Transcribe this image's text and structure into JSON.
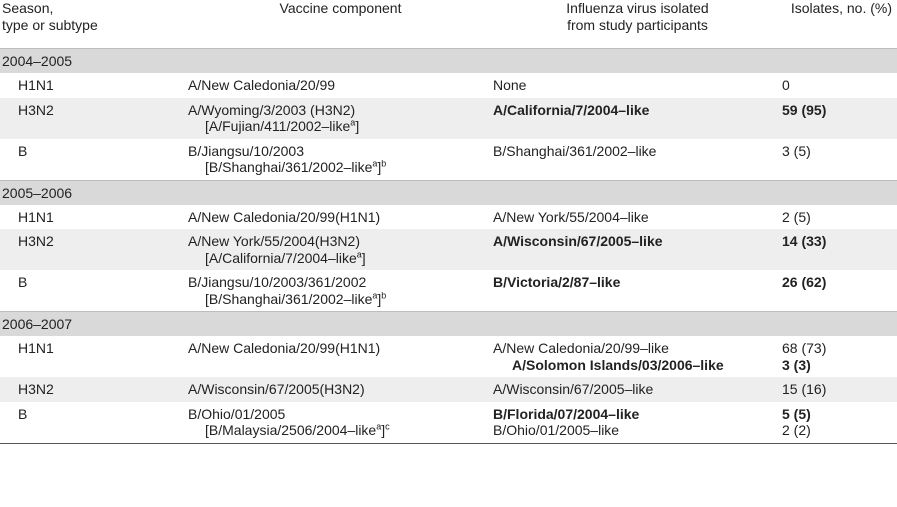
{
  "header": {
    "col_season": "Season,\ntype or subtype",
    "col_vaccine": "Vaccine component",
    "col_isolated": "Influenza virus isolated\nfrom study participants",
    "col_isolates": "Isolates, no. (%)"
  },
  "seasons": [
    {
      "label": "2004–2005",
      "rows": [
        {
          "type": "H1N1",
          "vaccine": "A/New Caledonia/20/99",
          "vaccine_sub": "",
          "vaccine_sub_sup": "",
          "vaccine_sub_tail": "",
          "isolated": [
            {
              "text": "None",
              "bold": false
            }
          ],
          "isolates": [
            {
              "text": "0",
              "bold": false
            }
          ],
          "shaded": false
        },
        {
          "type": "H3N2",
          "vaccine": "A/Wyoming/3/2003 (H3N2)",
          "vaccine_sub": "[A/Fujian/411/2002–like",
          "vaccine_sub_sup": "a",
          "vaccine_sub_tail": "]",
          "isolated": [
            {
              "text": "A/California/7/2004–like",
              "bold": true
            }
          ],
          "isolates": [
            {
              "text": "59 (95)",
              "bold": true
            }
          ],
          "shaded": true
        },
        {
          "type": "B",
          "vaccine": "B/Jiangsu/10/2003",
          "vaccine_sub": "[B/Shanghai/361/2002–like",
          "vaccine_sub_sup": "a",
          "vaccine_sub_tail": "]b",
          "isolated": [
            {
              "text": "B/Shanghai/361/2002–like",
              "bold": false
            }
          ],
          "isolates": [
            {
              "text": "3 (5)",
              "bold": false
            }
          ],
          "shaded": false
        }
      ]
    },
    {
      "label": "2005–2006",
      "rows": [
        {
          "type": "H1N1",
          "vaccine": "A/New Caledonia/20/99(H1N1)",
          "vaccine_sub": "",
          "vaccine_sub_sup": "",
          "vaccine_sub_tail": "",
          "isolated": [
            {
              "text": "A/New York/55/2004–like",
              "bold": false
            }
          ],
          "isolates": [
            {
              "text": "2 (5)",
              "bold": false
            }
          ],
          "shaded": false
        },
        {
          "type": "H3N2",
          "vaccine": "A/New York/55/2004(H3N2)",
          "vaccine_sub": "[A/California/7/2004–like",
          "vaccine_sub_sup": "a",
          "vaccine_sub_tail": "]",
          "isolated": [
            {
              "text": "A/Wisconsin/67/2005–like",
              "bold": true
            }
          ],
          "isolates": [
            {
              "text": "14 (33)",
              "bold": true
            }
          ],
          "shaded": true
        },
        {
          "type": "B",
          "vaccine": "B/Jiangsu/10/2003/361/2002",
          "vaccine_sub": "[B/Shanghai/361/2002–like",
          "vaccine_sub_sup": "a",
          "vaccine_sub_tail": "]b",
          "isolated": [
            {
              "text": "B/Victoria/2/87–like",
              "bold": true
            }
          ],
          "isolates": [
            {
              "text": "26 (62)",
              "bold": true
            }
          ],
          "shaded": false
        }
      ]
    },
    {
      "label": "2006–2007",
      "rows": [
        {
          "type": "H1N1",
          "vaccine": "A/New Caledonia/20/99(H1N1)",
          "vaccine_sub": "",
          "vaccine_sub_sup": "",
          "vaccine_sub_tail": "",
          "isolated": [
            {
              "text": "A/New Caledonia/20/99–like",
              "bold": false
            },
            {
              "text": "A/Solomon Islands/03/2006–like",
              "bold": true
            }
          ],
          "isolates": [
            {
              "text": "68 (73)",
              "bold": false
            },
            {
              "text": "3 (3)",
              "bold": true
            }
          ],
          "shaded": false
        },
        {
          "type": "H3N2",
          "vaccine": "A/Wisconsin/67/2005(H3N2)",
          "vaccine_sub": "",
          "vaccine_sub_sup": "",
          "vaccine_sub_tail": "",
          "isolated": [
            {
              "text": "A/Wisconsin/67/2005–like",
              "bold": false
            }
          ],
          "isolates": [
            {
              "text": "15 (16)",
              "bold": false
            }
          ],
          "shaded": true
        },
        {
          "type": "B",
          "vaccine": "B/Ohio/01/2005",
          "vaccine_sub": "[B/Malaysia/2506/2004–like",
          "vaccine_sub_sup": "a",
          "vaccine_sub_tail": "]c",
          "isolated": [
            {
              "text": "B/Florida/07/2004–like",
              "bold": true
            },
            {
              "text": "B/Ohio/01/2005–like",
              "bold": false
            }
          ],
          "isolates": [
            {
              "text": "5 (5)",
              "bold": true
            },
            {
              "text": "2 (2)",
              "bold": false
            }
          ],
          "shaded": false
        }
      ]
    }
  ]
}
